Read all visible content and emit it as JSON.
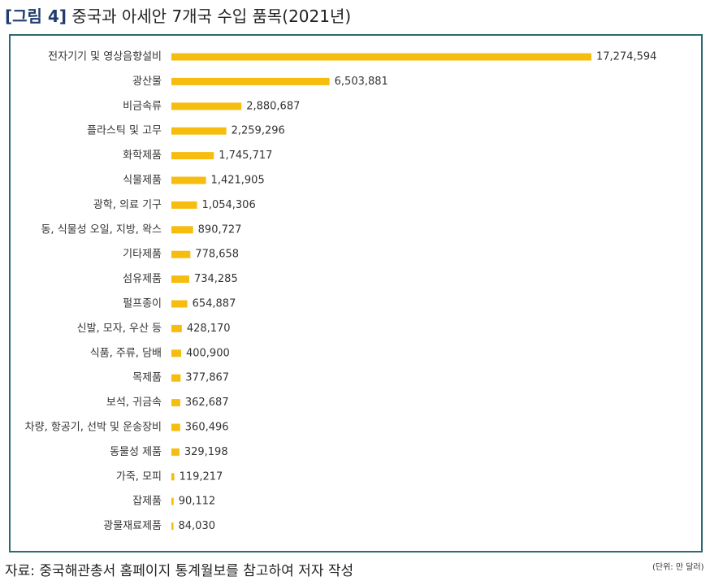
{
  "figure": {
    "number_label": "[그림 4]",
    "title": "중국과 아세안 7개국 수입 품목(2021년)"
  },
  "unit_note": "(단위: 만 달러)",
  "source": "자료: 중국해관총서 홈페이지 통계월보를 참고하여 저자 작성",
  "colors": {
    "bar": "#f6bd0f",
    "frame": "#2d6a74",
    "title_number": "#1f3c6e"
  },
  "chart_data": {
    "type": "bar",
    "orientation": "horizontal",
    "categories": [
      "전자기기 및 영상음향설비",
      "광산물",
      "비금속류",
      "플라스틱 및 고무",
      "화학제품",
      "식물제품",
      "광학, 의료 기구",
      "동, 식물성 오일, 지방, 왁스",
      "기타제품",
      "섬유제품",
      "펄프종이",
      "신발, 모자, 우산 등",
      "식품, 주류, 담배",
      "목제품",
      "보석, 귀금속",
      "차량, 항공기, 선박 및 운송장비",
      "동물성 제품",
      "가죽, 모피",
      "잡제품",
      "광물재료제품"
    ],
    "values": [
      17274594,
      6503881,
      2880687,
      2259296,
      1745717,
      1421905,
      1054306,
      890727,
      778658,
      734285,
      654887,
      428170,
      400900,
      377867,
      362687,
      360496,
      329198,
      119217,
      90112,
      84030
    ],
    "value_labels": [
      "17,274,594",
      "6,503,881",
      "2,880,687",
      "2,259,296",
      "1,745,717",
      "1,421,905",
      "1,054,306",
      "890,727",
      "778,658",
      "734,285",
      "654,887",
      "428,170",
      "400,900",
      "377,867",
      "362,687",
      "360,496",
      "329,198",
      "119,217",
      "90,112",
      "84,030"
    ],
    "title": "",
    "xlabel": "",
    "ylabel": "",
    "grid": false,
    "legend": "none"
  }
}
